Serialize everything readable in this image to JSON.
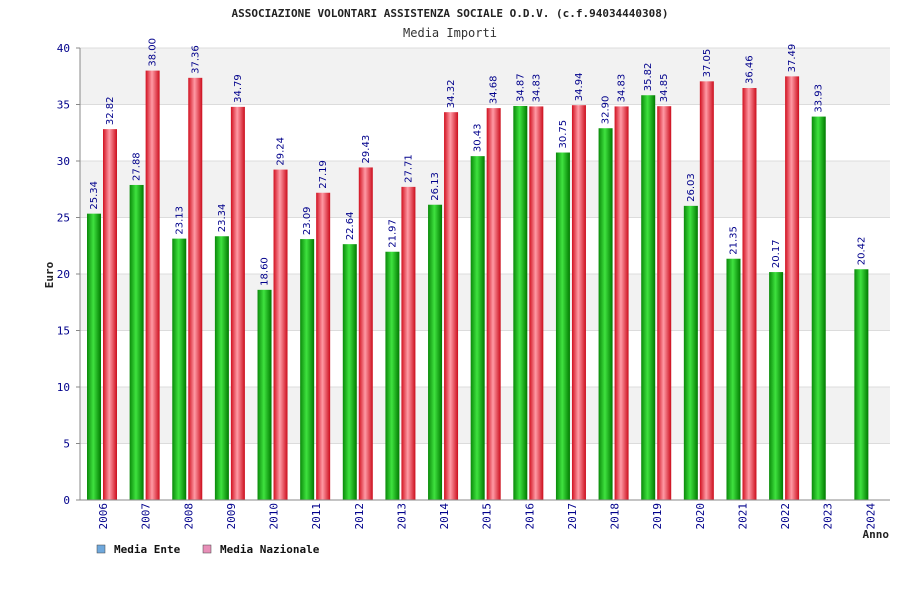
{
  "chart_data": {
    "type": "bar",
    "title": "ASSOCIAZIONE VOLONTARI ASSISTENZA SOCIALE O.D.V. (c.f.94034440308)",
    "subtitle": "Media Importi",
    "xlabel": "Anno",
    "ylabel": "Euro",
    "ylim": [
      0,
      40
    ],
    "yticks": [
      0,
      5,
      10,
      15,
      20,
      25,
      30,
      35,
      40
    ],
    "grid": true,
    "legend_position": "bottom-left",
    "categories": [
      "2006",
      "2007",
      "2008",
      "2009",
      "2010",
      "2011",
      "2012",
      "2013",
      "2014",
      "2015",
      "2016",
      "2017",
      "2018",
      "2019",
      "2020",
      "2021",
      "2022",
      "2023",
      "2024"
    ],
    "series": [
      {
        "name": "Media Ente",
        "color": "#009900",
        "legend_color": "#6fa8dc",
        "values": [
          25.34,
          27.88,
          23.13,
          23.34,
          18.6,
          23.09,
          22.64,
          21.97,
          26.13,
          30.43,
          34.87,
          30.75,
          32.9,
          35.82,
          26.03,
          21.35,
          20.17,
          33.93,
          20.42
        ],
        "labels": [
          "25.34",
          "27.88",
          "23.13",
          "23.34",
          "18.60",
          "23.09",
          "22.64",
          "21.97",
          "26.13",
          "30.43",
          "34.87",
          "30.75",
          "32.90",
          "35.82",
          "26.03",
          "21.35",
          "20.17",
          "33.93",
          "20.42"
        ]
      },
      {
        "name": "Media Nazionale",
        "color": "#e8192c",
        "legend_color": "#e88fb8",
        "values": [
          32.82,
          38.0,
          37.36,
          34.79,
          29.24,
          27.19,
          29.43,
          27.71,
          34.32,
          34.68,
          34.83,
          34.94,
          34.83,
          34.85,
          37.05,
          36.46,
          37.49,
          null,
          null
        ],
        "labels": [
          "32.82",
          "38.00",
          "37.36",
          "34.79",
          "29.24",
          "27.19",
          "29.43",
          "27.71",
          "34.32",
          "34.68",
          "34.83",
          "34.94",
          "34.83",
          "34.85",
          "37.05",
          "36.46",
          "37.49",
          "",
          ""
        ]
      }
    ]
  }
}
